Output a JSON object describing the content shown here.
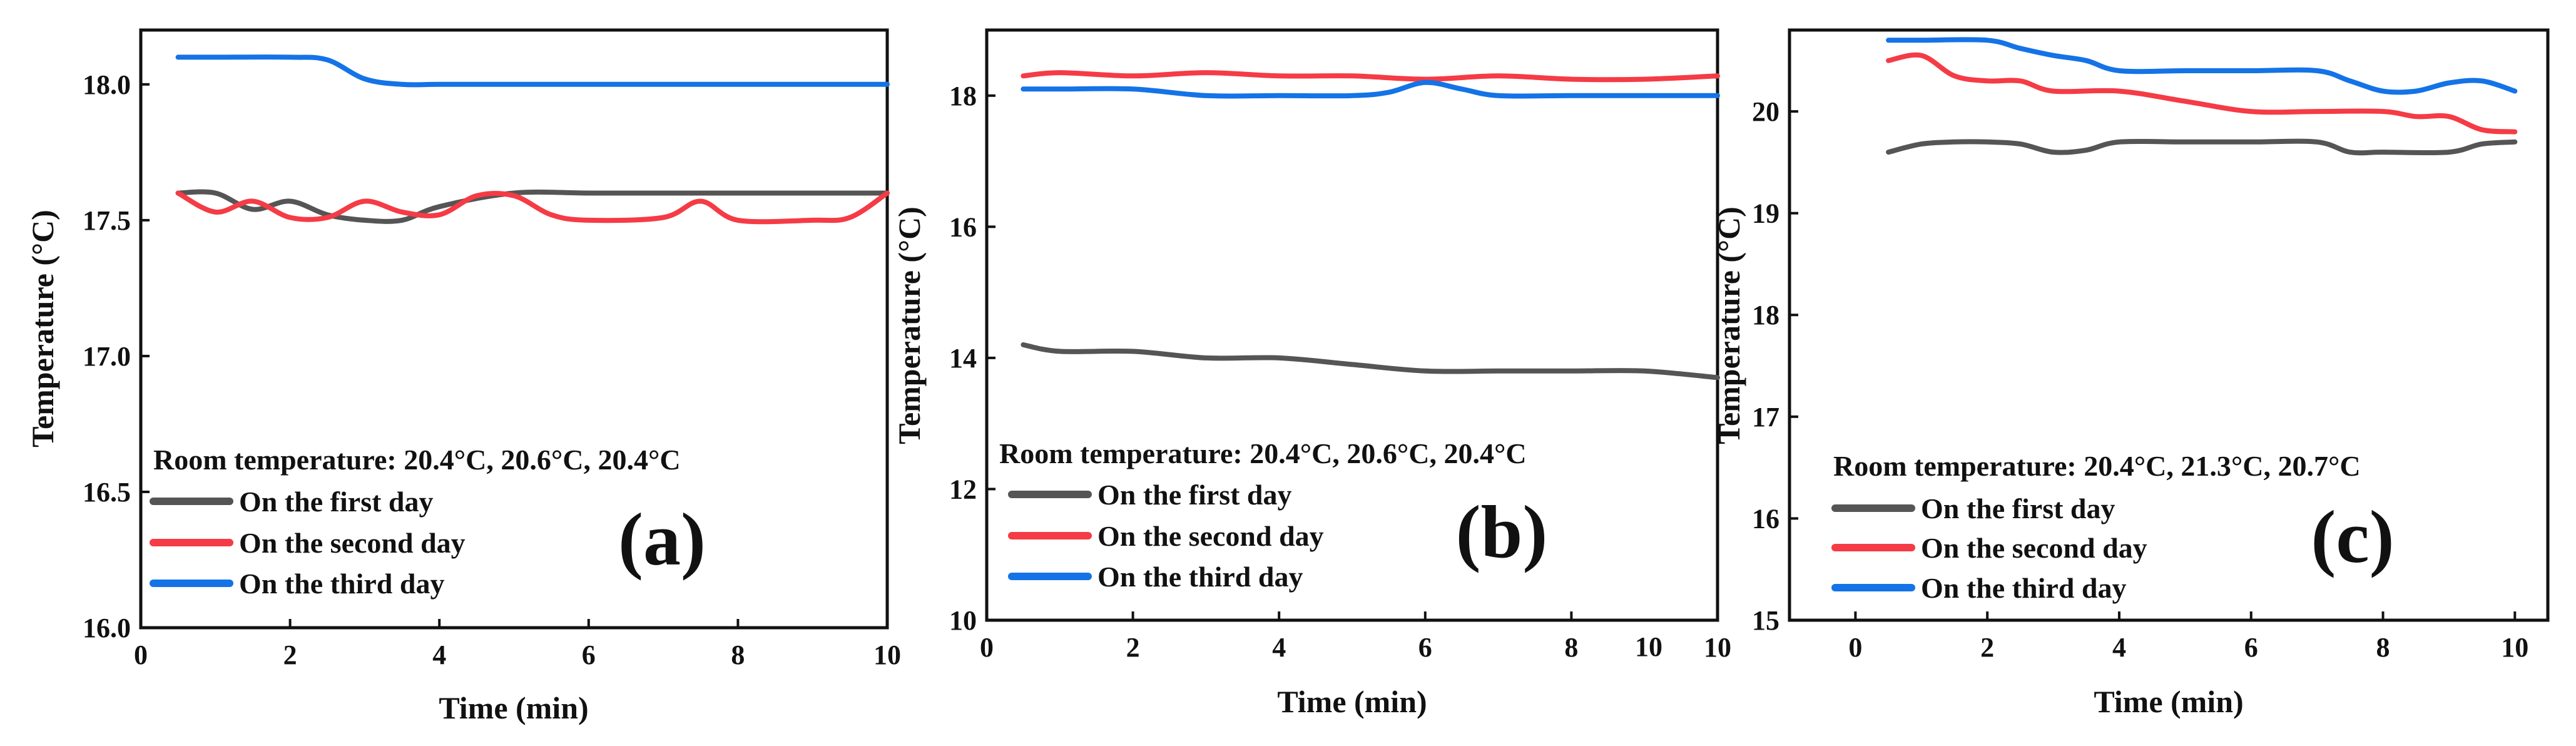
{
  "figure_panels": [
    "a",
    "b",
    "c"
  ],
  "chart_data": [
    {
      "type": "line",
      "panel_label": "(a)",
      "xlabel": "Time (min)",
      "ylabel": "Temperature (°C)",
      "xlim": [
        0,
        10
      ],
      "ylim": [
        16.0,
        18.2
      ],
      "x_ticks": [
        0,
        2,
        4,
        6,
        8,
        10
      ],
      "y_ticks": [
        16.0,
        16.5,
        17.0,
        17.5,
        18.0
      ],
      "x_tick_labels": [
        "0",
        "2",
        "4",
        "6",
        "8",
        "10"
      ],
      "y_tick_labels": [
        "16.0",
        "16.5",
        "17.0",
        "17.5",
        "18.0"
      ],
      "grid": false,
      "room_temperature": "Room temperature: 20.4°C, 20.6°C, 20.4°C",
      "legend_position": "lower-left",
      "series": [
        {
          "name": "On the first day",
          "color": "#555555",
          "x": [
            0.5,
            1,
            1.5,
            2,
            2.5,
            3,
            3.5,
            4,
            5,
            6,
            7,
            8,
            9,
            10
          ],
          "y": [
            17.6,
            17.6,
            17.54,
            17.57,
            17.52,
            17.5,
            17.5,
            17.55,
            17.6,
            17.6,
            17.6,
            17.6,
            17.6,
            17.6
          ]
        },
        {
          "name": "On the second day",
          "color": "#f53b45",
          "x": [
            0.5,
            1,
            1.5,
            2,
            2.5,
            3,
            3.5,
            4,
            4.5,
            5,
            5.5,
            6,
            7,
            7.5,
            8,
            9,
            9.5,
            10
          ],
          "y": [
            17.6,
            17.53,
            17.57,
            17.51,
            17.51,
            17.57,
            17.53,
            17.52,
            17.59,
            17.59,
            17.52,
            17.5,
            17.51,
            17.57,
            17.5,
            17.5,
            17.51,
            17.6
          ]
        },
        {
          "name": "On the third day",
          "color": "#1473e6",
          "x": [
            0.5,
            1,
            2,
            2.5,
            3,
            3.5,
            4,
            5,
            6,
            7,
            8,
            9,
            10
          ],
          "y": [
            18.1,
            18.1,
            18.1,
            18.09,
            18.02,
            18.0,
            18.0,
            18.0,
            18.0,
            18.0,
            18.0,
            18.0,
            18.0
          ]
        }
      ]
    },
    {
      "type": "line",
      "panel_label": "(b)",
      "xlabel": "Time (min)",
      "ylabel": "Temperature (°C)",
      "xlim": [
        0,
        10
      ],
      "ylim": [
        10,
        19
      ],
      "x_ticks": [
        0,
        2,
        4,
        6,
        8,
        10
      ],
      "y_ticks": [
        10,
        12,
        14,
        16,
        18
      ],
      "x_tick_labels": [
        "0",
        "2",
        "4",
        "6",
        "8",
        "10"
      ],
      "y_tick_labels": [
        "10",
        "12",
        "14",
        "16",
        "18"
      ],
      "extra_x_label": "10",
      "grid": false,
      "room_temperature": "Room temperature: 20.4°C, 20.6°C, 20.4°C",
      "legend_position": "lower-left",
      "series": [
        {
          "name": "On the first day",
          "color": "#555555",
          "x": [
            0.5,
            1,
            2,
            3,
            4,
            5,
            6,
            7,
            8,
            9,
            10
          ],
          "y": [
            14.2,
            14.1,
            14.1,
            14.0,
            14.0,
            13.9,
            13.8,
            13.8,
            13.8,
            13.8,
            13.7
          ]
        },
        {
          "name": "On the second day",
          "color": "#f53b45",
          "x": [
            0.5,
            1,
            2,
            3,
            4,
            5,
            6,
            7,
            8,
            9,
            10
          ],
          "y": [
            18.3,
            18.35,
            18.3,
            18.35,
            18.3,
            18.3,
            18.25,
            18.3,
            18.25,
            18.25,
            18.3
          ]
        },
        {
          "name": "On the third day",
          "color": "#1473e6",
          "x": [
            0.5,
            1,
            2,
            3,
            4,
            5,
            5.5,
            6,
            6.5,
            7,
            8,
            9,
            10
          ],
          "y": [
            18.1,
            18.1,
            18.1,
            18.0,
            18.0,
            18.0,
            18.05,
            18.2,
            18.1,
            18.0,
            18.0,
            18.0,
            18.0
          ]
        }
      ]
    },
    {
      "type": "line",
      "panel_label": "(c)",
      "xlabel": "Time (min)",
      "ylabel": "Temperature (°C)",
      "xlim": [
        -1,
        10.5
      ],
      "ylim": [
        15,
        20.8
      ],
      "x_ticks": [
        0,
        2,
        4,
        6,
        8,
        10
      ],
      "y_ticks": [
        15,
        16,
        17,
        18,
        19,
        20
      ],
      "x_tick_labels": [
        "0",
        "2",
        "4",
        "6",
        "8",
        "10"
      ],
      "y_tick_labels": [
        "15",
        "16",
        "17",
        "18",
        "19",
        "20"
      ],
      "grid": false,
      "room_temperature": "Room temperature: 20.4°C, 21.3°C, 20.7°C",
      "legend_position": "lower-left",
      "series": [
        {
          "name": "On the first day",
          "color": "#555555",
          "x": [
            0.5,
            1,
            1.5,
            2,
            2.5,
            3,
            3.5,
            4,
            5,
            6,
            7,
            7.5,
            8,
            9,
            9.5,
            10
          ],
          "y": [
            19.6,
            19.68,
            19.7,
            19.7,
            19.68,
            19.6,
            19.62,
            19.7,
            19.7,
            19.7,
            19.7,
            19.6,
            19.6,
            19.6,
            19.68,
            19.7
          ]
        },
        {
          "name": "On the second day",
          "color": "#f53b45",
          "x": [
            0.5,
            1,
            1.5,
            2,
            2.5,
            3,
            4,
            5,
            6,
            7,
            8,
            8.5,
            9,
            9.5,
            10
          ],
          "y": [
            20.5,
            20.55,
            20.35,
            20.3,
            20.3,
            20.2,
            20.2,
            20.1,
            20.0,
            20.0,
            20.0,
            19.95,
            19.95,
            19.82,
            19.8
          ]
        },
        {
          "name": "On the third day",
          "color": "#1473e6",
          "x": [
            0.5,
            1,
            2,
            2.5,
            3,
            3.5,
            4,
            5,
            6,
            7,
            7.5,
            8,
            8.5,
            9,
            9.5,
            10
          ],
          "y": [
            20.7,
            20.7,
            20.7,
            20.62,
            20.55,
            20.5,
            20.4,
            20.4,
            20.4,
            20.4,
            20.3,
            20.2,
            20.2,
            20.28,
            20.3,
            20.2
          ]
        }
      ]
    }
  ]
}
